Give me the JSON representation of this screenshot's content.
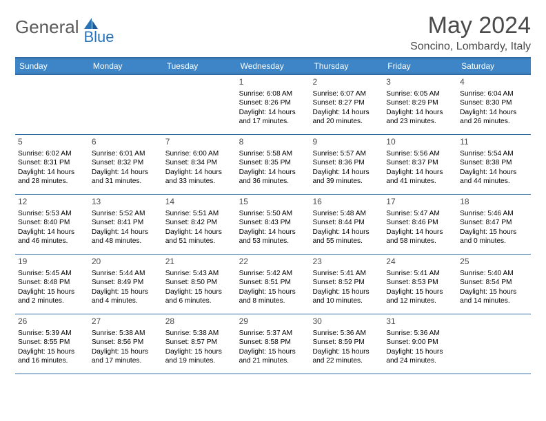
{
  "logo": {
    "general": "General",
    "blue": "Blue"
  },
  "title": "May 2024",
  "subtitle": "Soncino, Lombardy, Italy",
  "colors": {
    "header_bg": "#3d85c6",
    "header_border": "#2f6ba3",
    "logo_gray": "#5a5a5a",
    "logo_blue": "#2873b8",
    "text_gray": "#4a4a4a"
  },
  "weekdays": [
    "Sunday",
    "Monday",
    "Tuesday",
    "Wednesday",
    "Thursday",
    "Friday",
    "Saturday"
  ],
  "weeks": [
    [
      null,
      null,
      null,
      {
        "n": "1",
        "sr": "6:08 AM",
        "ss": "8:26 PM",
        "dl": "14 hours and 17 minutes."
      },
      {
        "n": "2",
        "sr": "6:07 AM",
        "ss": "8:27 PM",
        "dl": "14 hours and 20 minutes."
      },
      {
        "n": "3",
        "sr": "6:05 AM",
        "ss": "8:29 PM",
        "dl": "14 hours and 23 minutes."
      },
      {
        "n": "4",
        "sr": "6:04 AM",
        "ss": "8:30 PM",
        "dl": "14 hours and 26 minutes."
      }
    ],
    [
      {
        "n": "5",
        "sr": "6:02 AM",
        "ss": "8:31 PM",
        "dl": "14 hours and 28 minutes."
      },
      {
        "n": "6",
        "sr": "6:01 AM",
        "ss": "8:32 PM",
        "dl": "14 hours and 31 minutes."
      },
      {
        "n": "7",
        "sr": "6:00 AM",
        "ss": "8:34 PM",
        "dl": "14 hours and 33 minutes."
      },
      {
        "n": "8",
        "sr": "5:58 AM",
        "ss": "8:35 PM",
        "dl": "14 hours and 36 minutes."
      },
      {
        "n": "9",
        "sr": "5:57 AM",
        "ss": "8:36 PM",
        "dl": "14 hours and 39 minutes."
      },
      {
        "n": "10",
        "sr": "5:56 AM",
        "ss": "8:37 PM",
        "dl": "14 hours and 41 minutes."
      },
      {
        "n": "11",
        "sr": "5:54 AM",
        "ss": "8:38 PM",
        "dl": "14 hours and 44 minutes."
      }
    ],
    [
      {
        "n": "12",
        "sr": "5:53 AM",
        "ss": "8:40 PM",
        "dl": "14 hours and 46 minutes."
      },
      {
        "n": "13",
        "sr": "5:52 AM",
        "ss": "8:41 PM",
        "dl": "14 hours and 48 minutes."
      },
      {
        "n": "14",
        "sr": "5:51 AM",
        "ss": "8:42 PM",
        "dl": "14 hours and 51 minutes."
      },
      {
        "n": "15",
        "sr": "5:50 AM",
        "ss": "8:43 PM",
        "dl": "14 hours and 53 minutes."
      },
      {
        "n": "16",
        "sr": "5:48 AM",
        "ss": "8:44 PM",
        "dl": "14 hours and 55 minutes."
      },
      {
        "n": "17",
        "sr": "5:47 AM",
        "ss": "8:46 PM",
        "dl": "14 hours and 58 minutes."
      },
      {
        "n": "18",
        "sr": "5:46 AM",
        "ss": "8:47 PM",
        "dl": "15 hours and 0 minutes."
      }
    ],
    [
      {
        "n": "19",
        "sr": "5:45 AM",
        "ss": "8:48 PM",
        "dl": "15 hours and 2 minutes."
      },
      {
        "n": "20",
        "sr": "5:44 AM",
        "ss": "8:49 PM",
        "dl": "15 hours and 4 minutes."
      },
      {
        "n": "21",
        "sr": "5:43 AM",
        "ss": "8:50 PM",
        "dl": "15 hours and 6 minutes."
      },
      {
        "n": "22",
        "sr": "5:42 AM",
        "ss": "8:51 PM",
        "dl": "15 hours and 8 minutes."
      },
      {
        "n": "23",
        "sr": "5:41 AM",
        "ss": "8:52 PM",
        "dl": "15 hours and 10 minutes."
      },
      {
        "n": "24",
        "sr": "5:41 AM",
        "ss": "8:53 PM",
        "dl": "15 hours and 12 minutes."
      },
      {
        "n": "25",
        "sr": "5:40 AM",
        "ss": "8:54 PM",
        "dl": "15 hours and 14 minutes."
      }
    ],
    [
      {
        "n": "26",
        "sr": "5:39 AM",
        "ss": "8:55 PM",
        "dl": "15 hours and 16 minutes."
      },
      {
        "n": "27",
        "sr": "5:38 AM",
        "ss": "8:56 PM",
        "dl": "15 hours and 17 minutes."
      },
      {
        "n": "28",
        "sr": "5:38 AM",
        "ss": "8:57 PM",
        "dl": "15 hours and 19 minutes."
      },
      {
        "n": "29",
        "sr": "5:37 AM",
        "ss": "8:58 PM",
        "dl": "15 hours and 21 minutes."
      },
      {
        "n": "30",
        "sr": "5:36 AM",
        "ss": "8:59 PM",
        "dl": "15 hours and 22 minutes."
      },
      {
        "n": "31",
        "sr": "5:36 AM",
        "ss": "9:00 PM",
        "dl": "15 hours and 24 minutes."
      },
      null
    ]
  ],
  "labels": {
    "sunrise": "Sunrise:",
    "sunset": "Sunset:",
    "daylight": "Daylight:"
  }
}
